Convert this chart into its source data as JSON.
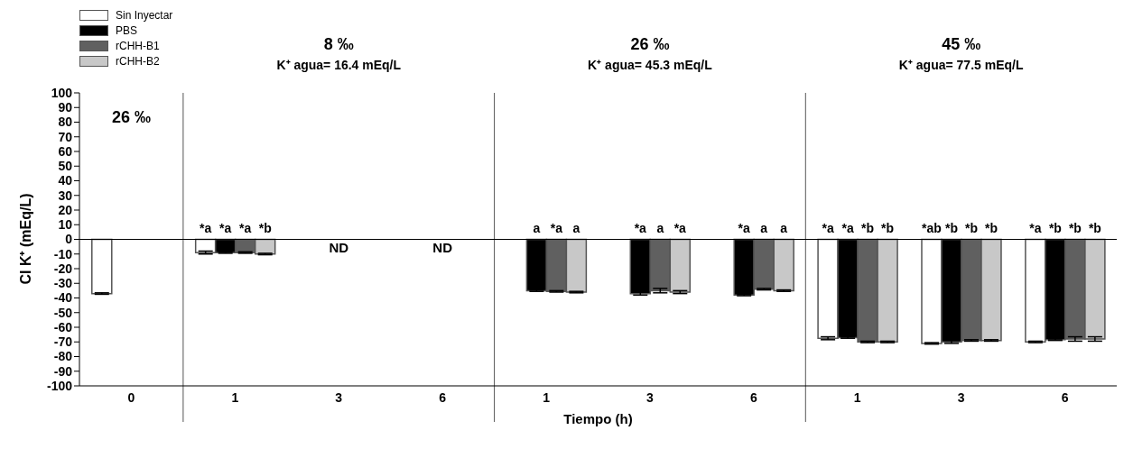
{
  "chart_data": {
    "type": "bar",
    "xlabel": "Tiempo (h)",
    "ylabel": "CI K⁺ (mEq/L)",
    "categories": [
      "0",
      "1",
      "3",
      "6",
      "1",
      "3",
      "6",
      "1",
      "3",
      "6"
    ],
    "series": [
      {
        "name": "Sin Inyectar",
        "color": "#ffffff",
        "values": [
          -37,
          -9,
          null,
          null,
          null,
          null,
          null,
          -67.5,
          -71,
          -70
        ],
        "errors": [
          0.5,
          1,
          null,
          null,
          null,
          null,
          null,
          1,
          0.5,
          0.5
        ],
        "value_labels": [
          null,
          "*a",
          null,
          null,
          null,
          null,
          null,
          "*a",
          "*ab",
          "*a"
        ]
      },
      {
        "name": "PBS",
        "color": "#000000",
        "values": [
          null,
          -9,
          null,
          null,
          -35,
          -37,
          -38,
          -67,
          -70,
          -68.5
        ],
        "errors": [
          null,
          0.5,
          null,
          null,
          0.5,
          1,
          0.5,
          0.5,
          1,
          0.5
        ],
        "value_labels": [
          null,
          "*a",
          null,
          null,
          "a",
          "*a",
          "*a",
          "*a",
          "*b",
          "*b"
        ]
      },
      {
        "name": "rCHH-B1",
        "color": "#606060",
        "values": [
          null,
          -9,
          null,
          null,
          -35.5,
          -35,
          -34,
          -70,
          -69,
          -68
        ],
        "errors": [
          null,
          0.5,
          null,
          null,
          0.5,
          1.5,
          0.5,
          0.5,
          0.5,
          1.5
        ],
        "value_labels": [
          null,
          "*a",
          null,
          null,
          "*a",
          "a",
          "a",
          "*b",
          "*b",
          "*b"
        ]
      },
      {
        "name": "rCHH-B2",
        "color": "#c8c8c8",
        "values": [
          null,
          -10,
          null,
          null,
          -36,
          -36,
          -35,
          -70,
          -69,
          -68
        ],
        "errors": [
          null,
          0.5,
          null,
          null,
          0.5,
          1,
          0.5,
          0.5,
          0.5,
          1.5
        ],
        "value_labels": [
          null,
          "*b",
          null,
          null,
          "a",
          "*a",
          "a",
          "*b",
          "*b",
          "*b"
        ]
      }
    ],
    "ylim": [
      -100,
      100
    ],
    "yticks": [
      -100,
      -90,
      -80,
      -70,
      -60,
      -50,
      -40,
      -30,
      -20,
      -10,
      0,
      10,
      20,
      30,
      40,
      50,
      60,
      70,
      80,
      90,
      100
    ],
    "ref_lines": [
      {
        "axis": "y",
        "value": 0
      }
    ],
    "legend": "top left",
    "annotations": [
      "8 ‰",
      "K⁺ agua= 16.4 mEq/L",
      "26 ‰",
      "K⁺ agua= 45.3 mEq/L",
      "45 ‰",
      "K⁺ agua= 77.5 mEq/L",
      "26 ‰",
      "ND",
      "ND"
    ]
  }
}
